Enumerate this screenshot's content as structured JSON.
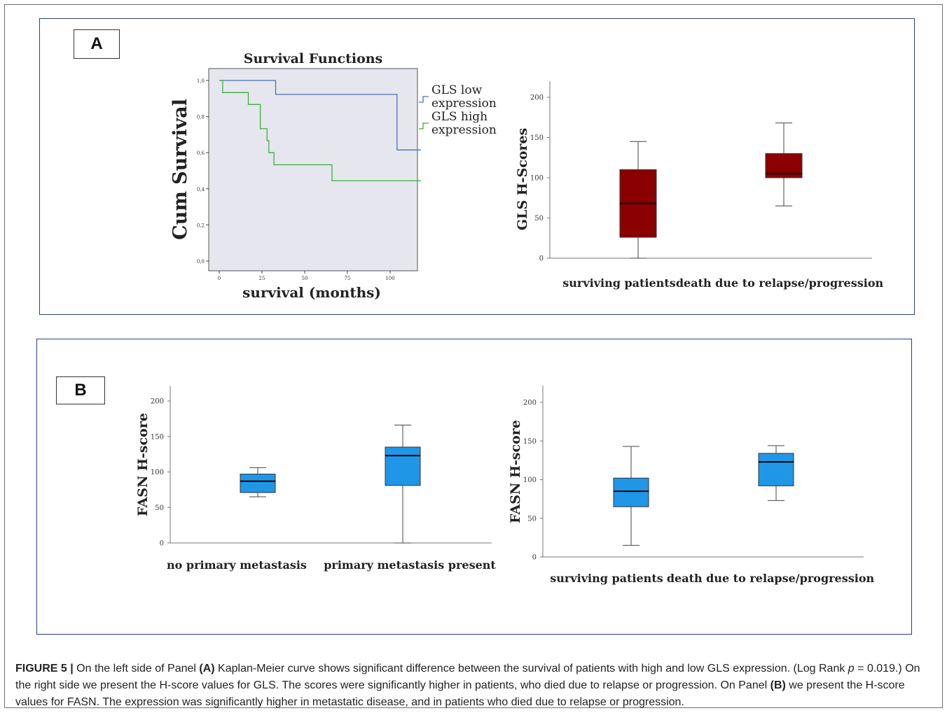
{
  "panels": {
    "a_label": "A",
    "b_label": "B"
  },
  "chart_data": [
    {
      "id": "km",
      "type": "line",
      "subtype": "kaplan-meier step",
      "title": "Survival Functions",
      "xlabel": "survival (months)",
      "ylabel": "Cum Survival",
      "xlim": [
        0,
        118
      ],
      "ylim": [
        0,
        1.0
      ],
      "xticks": [
        "0",
        "25",
        "50",
        "75",
        "100"
      ],
      "yticks": [
        "0,0",
        "0,2",
        "0,4",
        "0,6",
        "0,8",
        "1,0"
      ],
      "legend_position": "right",
      "series": [
        {
          "name": "GLS low expression",
          "color": "#4a6fc0",
          "points": [
            [
              0,
              1.0
            ],
            [
              33,
              1.0
            ],
            [
              33,
              0.923
            ],
            [
              104,
              0.923
            ],
            [
              104,
              0.615
            ],
            [
              118,
              0.615
            ]
          ]
        },
        {
          "name": "GLS high expression",
          "color": "#3fae3f",
          "points": [
            [
              0,
              1.0
            ],
            [
              2,
              1.0
            ],
            [
              2,
              0.933
            ],
            [
              17,
              0.933
            ],
            [
              17,
              0.867
            ],
            [
              24,
              0.867
            ],
            [
              24,
              0.733
            ],
            [
              28,
              0.733
            ],
            [
              28,
              0.667
            ],
            [
              29,
              0.667
            ],
            [
              29,
              0.6
            ],
            [
              32,
              0.6
            ],
            [
              32,
              0.533
            ],
            [
              66,
              0.533
            ],
            [
              66,
              0.444
            ],
            [
              118,
              0.444
            ]
          ]
        }
      ]
    },
    {
      "id": "gls_box",
      "type": "box",
      "xlabel": "",
      "ylabel": "GLS H-Scores",
      "ylim": [
        0,
        220
      ],
      "yticks": [
        "0",
        "50",
        "100",
        "150",
        "200"
      ],
      "categories": [
        "surviving patients",
        "death due to relapse/progression"
      ],
      "color": "#8b0000",
      "boxes": [
        {
          "min": 0,
          "q1": 26,
          "median": 68,
          "q3": 110,
          "max": 145
        },
        {
          "min": 65,
          "q1": 100,
          "median": 105,
          "q3": 130,
          "max": 168
        }
      ]
    },
    {
      "id": "fasn_box_metastasis",
      "type": "box",
      "xlabel": "",
      "ylabel": "FASN H-score",
      "ylim": [
        0,
        220
      ],
      "yticks": [
        "0",
        "50",
        "100",
        "150",
        "200"
      ],
      "categories": [
        "no primary metastasis",
        "primary metastasis present"
      ],
      "color": "#1f97e6",
      "boxes": [
        {
          "min": 65,
          "q1": 71,
          "median": 87,
          "q3": 97,
          "max": 106
        },
        {
          "min": 0,
          "q1": 81,
          "median": 123,
          "q3": 135,
          "max": 166
        }
      ]
    },
    {
      "id": "fasn_box_survival",
      "type": "box",
      "xlabel": "",
      "ylabel": "FASN H-score",
      "ylim": [
        0,
        220
      ],
      "yticks": [
        "0",
        "50",
        "100",
        "150",
        "200"
      ],
      "categories": [
        "surviving patients",
        "death due to relapse/progression"
      ],
      "color": "#1f97e6",
      "boxes": [
        {
          "min": 15,
          "q1": 65,
          "median": 85,
          "q3": 102,
          "max": 143
        },
        {
          "min": 73,
          "q1": 92,
          "median": 123,
          "q3": 134,
          "max": 144
        }
      ]
    }
  ],
  "caption": {
    "figure_label": "FIGURE 5 |",
    "t1": " On the left side of Panel ",
    "b1": "(A)",
    "t2": " Kaplan-Meier curve shows significant difference between the survival of patients with high and low GLS expression. (Log Rank ",
    "p_symbol": "p",
    "t3": " = 0.019.) On the right side we present the H-score values for GLS. The scores were significantly higher in patients, who died due to relapse or progression. On Panel ",
    "b2": "(B)",
    "t4": " we present the H-score values for FASN. The expression was significantly higher in metastatic disease, and in patients who died due to relapse or progression."
  }
}
